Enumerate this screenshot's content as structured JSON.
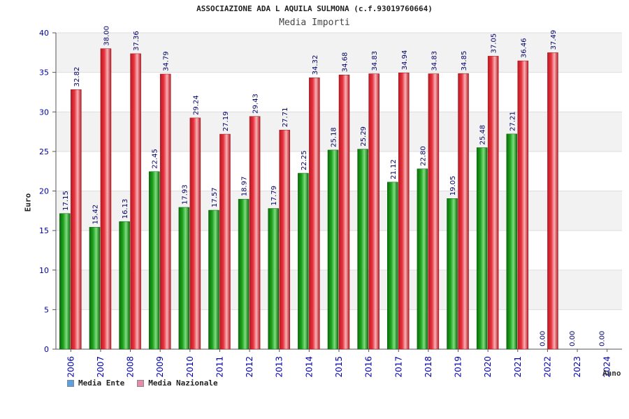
{
  "colors": {
    "ente": "#1fa31f",
    "nazionale": "#e8333e",
    "legend_ente": "#5aa0e6",
    "legend_nazionale": "#e88aa8",
    "tick_labels": "#0000aa",
    "value_labels": "#000066",
    "band": "#f2f2f2"
  },
  "chart_data": {
    "type": "bar",
    "title": "ASSOCIAZIONE ADA L AQUILA SULMONA (c.f.93019760664)",
    "subtitle": "Media Importi",
    "xlabel": "Anno",
    "ylabel": "Euro",
    "ylim": [
      0,
      40
    ],
    "yticks": [
      0,
      5,
      10,
      15,
      20,
      25,
      30,
      35,
      40
    ],
    "categories": [
      "2006",
      "2007",
      "2008",
      "2009",
      "2010",
      "2011",
      "2012",
      "2013",
      "2014",
      "2015",
      "2016",
      "2017",
      "2018",
      "2019",
      "2020",
      "2021",
      "2022",
      "2023",
      "2024"
    ],
    "series": [
      {
        "name": "Media Ente",
        "values": [
          17.15,
          15.42,
          16.13,
          22.45,
          17.93,
          17.57,
          18.97,
          17.79,
          22.25,
          25.18,
          25.29,
          21.12,
          22.8,
          19.05,
          25.48,
          27.21,
          null,
          null,
          null
        ],
        "labels": [
          "17.15",
          "15.42",
          "16.13",
          "22.45",
          "17.93",
          "17.57",
          "18.97",
          "17.79",
          "22.25",
          "25.18",
          "25.29",
          "21.12",
          "22.80",
          "19.05",
          "25.48",
          "27.21",
          "",
          "",
          ""
        ]
      },
      {
        "name": "Media Nazionale",
        "values": [
          32.82,
          38.0,
          37.36,
          34.79,
          29.24,
          27.19,
          29.43,
          27.71,
          34.32,
          34.68,
          34.83,
          34.94,
          34.83,
          34.85,
          37.05,
          36.46,
          37.49,
          null,
          null
        ],
        "labels": [
          "32.82",
          "38.00",
          "37.36",
          "34.79",
          "29.24",
          "27.19",
          "29.43",
          "27.71",
          "34.32",
          "34.68",
          "34.83",
          "34.94",
          "34.83",
          "34.85",
          "37.05",
          "36.46",
          "37.49",
          "",
          ""
        ]
      }
    ],
    "zero_labels": [
      {
        "category": "2022",
        "text": "0.00"
      },
      {
        "category": "2023",
        "text": "0.00"
      },
      {
        "category": "2024",
        "text": "0.00"
      }
    ],
    "legend": [
      {
        "label": "Media Ente",
        "color": "#5aa0e6"
      },
      {
        "label": "Media Nazionale",
        "color": "#e88aa8"
      }
    ],
    "legend_position": "bottom-left"
  }
}
